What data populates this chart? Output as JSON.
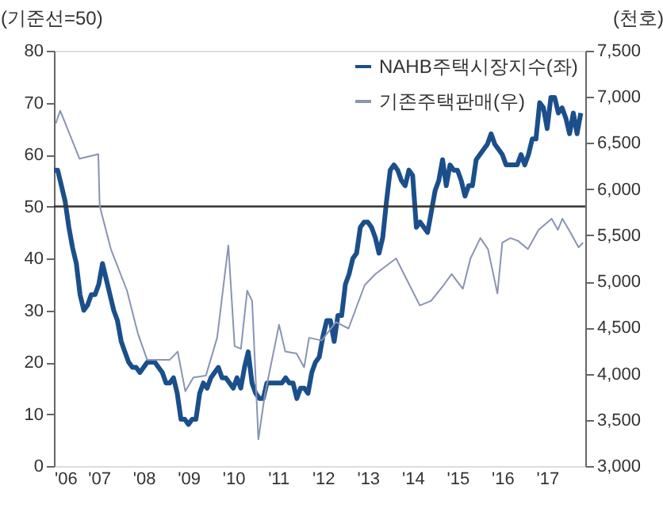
{
  "chart_data": {
    "type": "line",
    "xlabel": null,
    "ylabel": "(기준선=50)",
    "y2label": "(천호)",
    "xlim": [
      2006,
      2017.85
    ],
    "xticks": [
      {
        "value": 2006,
        "label": "'06"
      },
      {
        "value": 2007,
        "label": "'07"
      },
      {
        "value": 2008,
        "label": "'08"
      },
      {
        "value": 2009,
        "label": "'09"
      },
      {
        "value": 2010,
        "label": "'10"
      },
      {
        "value": 2011,
        "label": "'11"
      },
      {
        "value": 2012,
        "label": "'12"
      },
      {
        "value": 2013,
        "label": "'13"
      },
      {
        "value": 2014,
        "label": "'14"
      },
      {
        "value": 2015,
        "label": "'15"
      },
      {
        "value": 2016,
        "label": "'16"
      },
      {
        "value": 2017,
        "label": "'17"
      }
    ],
    "ylim": [
      0,
      80
    ],
    "yticks": [
      0,
      10,
      20,
      30,
      40,
      50,
      60,
      70,
      80
    ],
    "y2lim": [
      3000,
      7500
    ],
    "y2ticks": [
      {
        "value": 3000,
        "label": "3,000"
      },
      {
        "value": 3500,
        "label": "3,500"
      },
      {
        "value": 4000,
        "label": "4,000"
      },
      {
        "value": 4500,
        "label": "4,500"
      },
      {
        "value": 5000,
        "label": "5,000"
      },
      {
        "value": 5500,
        "label": "5,500"
      },
      {
        "value": 6000,
        "label": "6,000"
      },
      {
        "value": 6500,
        "label": "6,500"
      },
      {
        "value": 7000,
        "label": "7,000"
      },
      {
        "value": 7500,
        "label": "7,500"
      }
    ],
    "grid": false,
    "legend": "top right",
    "marker": "none",
    "line_style": "solid",
    "ref_lines": [
      {
        "axis": "y",
        "value": 50,
        "label": null,
        "color": "#333333"
      }
    ],
    "series": [
      {
        "name": "NAHB주택시장지수(좌)",
        "color": "#1a4f8b",
        "axis": "y",
        "x": [
          2006.0,
          2006.083,
          2006.167,
          2006.25,
          2006.333,
          2006.417,
          2006.5,
          2006.583,
          2006.667,
          2006.75,
          2006.833,
          2006.917,
          2007.0,
          2007.083,
          2007.167,
          2007.25,
          2007.333,
          2007.417,
          2007.5,
          2007.583,
          2007.667,
          2007.75,
          2007.833,
          2007.917,
          2008.0,
          2008.083,
          2008.167,
          2008.25,
          2008.333,
          2008.417,
          2008.5,
          2008.583,
          2008.667,
          2008.75,
          2008.833,
          2008.917,
          2009.0,
          2009.083,
          2009.167,
          2009.25,
          2009.333,
          2009.417,
          2009.5,
          2009.583,
          2009.667,
          2009.75,
          2009.833,
          2009.917,
          2010.0,
          2010.083,
          2010.167,
          2010.25,
          2010.333,
          2010.417,
          2010.5,
          2010.583,
          2010.667,
          2010.75,
          2010.833,
          2010.917,
          2011.0,
          2011.083,
          2011.167,
          2011.25,
          2011.333,
          2011.417,
          2011.5,
          2011.583,
          2011.667,
          2011.75,
          2011.833,
          2011.917,
          2012.0,
          2012.083,
          2012.167,
          2012.25,
          2012.333,
          2012.417,
          2012.5,
          2012.583,
          2012.667,
          2012.75,
          2012.833,
          2012.917,
          2013.0,
          2013.083,
          2013.167,
          2013.25,
          2013.333,
          2013.417,
          2013.5,
          2013.583,
          2013.667,
          2013.75,
          2013.833,
          2013.917,
          2014.0,
          2014.083,
          2014.167,
          2014.25,
          2014.333,
          2014.417,
          2014.5,
          2014.583,
          2014.667,
          2014.75,
          2014.833,
          2014.917,
          2015.0,
          2015.083,
          2015.167,
          2015.25,
          2015.333,
          2015.417,
          2015.5,
          2015.583,
          2015.667,
          2015.75,
          2015.833,
          2015.917,
          2016.0,
          2016.083,
          2016.167,
          2016.25,
          2016.333,
          2016.417,
          2016.5,
          2016.583,
          2016.667,
          2016.75,
          2016.833,
          2016.917,
          2017.0,
          2017.083,
          2017.167,
          2017.25,
          2017.333,
          2017.417,
          2017.5,
          2017.583,
          2017.667,
          2017.75
        ],
        "values": [
          57,
          57,
          54,
          51,
          46,
          42,
          39,
          33,
          30,
          31,
          33,
          33,
          35,
          39,
          36,
          33,
          30,
          28,
          24,
          22,
          20,
          19,
          19,
          18,
          19,
          20,
          20,
          20,
          19,
          18,
          16,
          16,
          17,
          14,
          9,
          9,
          8,
          9,
          9,
          14,
          16,
          15,
          17,
          18,
          19,
          17,
          17,
          16,
          15,
          17,
          15,
          19,
          22,
          16,
          14,
          13,
          13,
          16,
          16,
          16,
          16,
          16,
          17,
          16,
          16,
          13,
          15,
          15,
          14,
          18,
          20,
          21,
          25,
          28,
          28,
          24,
          29,
          29,
          35,
          37,
          40,
          41,
          46,
          47,
          47,
          46,
          44,
          41,
          44,
          51,
          57,
          58,
          57,
          55,
          54,
          57,
          56,
          46,
          47,
          46,
          45,
          49,
          53,
          55,
          59,
          54,
          58,
          57,
          57,
          55,
          52,
          54,
          54,
          59,
          60,
          61,
          62,
          64,
          62,
          61,
          60,
          58,
          58,
          58,
          58,
          60,
          58,
          60,
          63,
          63,
          70,
          69,
          65,
          71,
          71,
          68,
          69,
          67,
          64,
          68,
          64,
          68
        ]
      },
      {
        "name": "기존주택판매(우)",
        "color": "#8a94b3",
        "axis": "y2",
        "x": [
          2006.04,
          2006.14,
          2006.57,
          2006.99,
          2007.02,
          2007.27,
          2007.63,
          2007.87,
          2008.08,
          2008.58,
          2008.76,
          2008.93,
          2009.11,
          2009.39,
          2009.64,
          2009.89,
          2010.03,
          2010.17,
          2010.31,
          2010.42,
          2010.56,
          2010.7,
          2011.02,
          2011.16,
          2011.41,
          2011.58,
          2011.69,
          2011.97,
          2012.29,
          2012.57,
          2012.93,
          2013.17,
          2013.63,
          2013.88,
          2014.16,
          2014.41,
          2014.69,
          2014.87,
          2015.12,
          2015.29,
          2015.51,
          2015.68,
          2015.89,
          2016.0,
          2016.18,
          2016.35,
          2016.57,
          2016.81,
          2017.1,
          2017.24,
          2017.34,
          2017.52,
          2017.7,
          2017.8
        ],
        "values": [
          6710,
          6850,
          6330,
          6380,
          5820,
          5350,
          4900,
          4440,
          4150,
          4150,
          4240,
          3810,
          3960,
          3980,
          4390,
          5390,
          4300,
          4270,
          4900,
          4790,
          3290,
          3760,
          4530,
          4240,
          4220,
          4070,
          4390,
          4360,
          4560,
          4490,
          4960,
          5080,
          5250,
          5010,
          4740,
          4790,
          4960,
          5080,
          4920,
          5250,
          5470,
          5350,
          4870,
          5420,
          5470,
          5440,
          5350,
          5560,
          5680,
          5560,
          5680,
          5530,
          5370,
          5420
        ]
      }
    ]
  }
}
